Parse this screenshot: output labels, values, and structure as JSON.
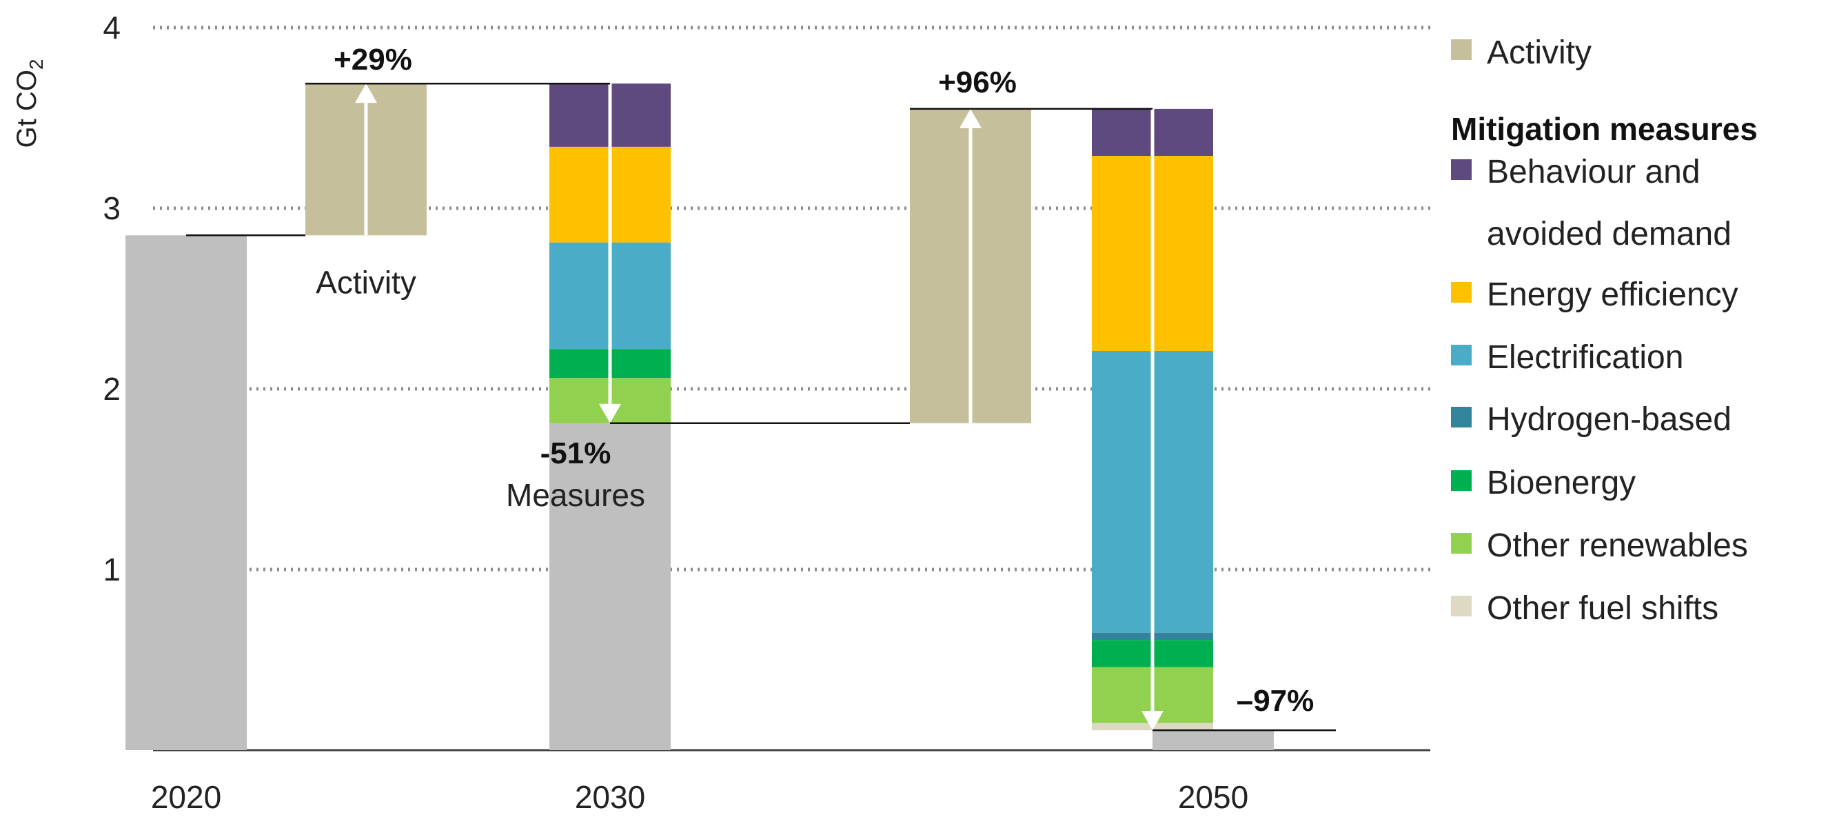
{
  "chart_data": {
    "type": "waterfall",
    "ylabel": "Gt CO",
    "ylabel_sub": "2",
    "yticks": [
      "1",
      "2",
      "3",
      "4"
    ],
    "ylim": [
      0,
      4
    ],
    "grid": true,
    "legend_position": "right",
    "categories": [
      "2020",
      "2030",
      "2050"
    ],
    "totals": [
      {
        "label": "2020",
        "value": 2.85
      },
      {
        "label": "2030",
        "value": 1.81
      },
      {
        "label": "2050",
        "value": 0.11
      }
    ],
    "activity_steps": [
      {
        "from": 2.85,
        "to": 3.69,
        "pct_label": "+29%",
        "text_label": "Activity"
      },
      {
        "from": 1.81,
        "to": 3.55,
        "pct_label": "+96%",
        "text_label": ""
      }
    ],
    "measure_steps": [
      {
        "from": 3.69,
        "to": 1.81,
        "pct_label": "-51%",
        "text_label": "Measures",
        "segments": {
          "behaviour": 0.35,
          "efficiency": 0.53,
          "electrification": 0.59,
          "hydrogen": 0.0,
          "bioenergy": 0.16,
          "other_renewables": 0.25,
          "other_fuel_shifts": 0.0
        }
      },
      {
        "from": 3.55,
        "to": 0.11,
        "pct_label": "–97%",
        "text_label": "",
        "segments": {
          "behaviour": 0.26,
          "efficiency": 1.08,
          "electrification": 1.56,
          "hydrogen": 0.04,
          "bioenergy": 0.15,
          "other_renewables": 0.31,
          "other_fuel_shifts": 0.04
        }
      }
    ],
    "legend": {
      "activity": "Activity",
      "heading": "Mitigation measures",
      "items": [
        {
          "key": "behaviour",
          "lines": [
            "Behaviour and",
            "avoided demand"
          ]
        },
        {
          "key": "efficiency",
          "lines": [
            "Energy efficiency"
          ]
        },
        {
          "key": "electrification",
          "lines": [
            "Electrification"
          ]
        },
        {
          "key": "hydrogen",
          "lines": [
            "Hydrogen-based"
          ]
        },
        {
          "key": "bioenergy",
          "lines": [
            "Bioenergy"
          ]
        },
        {
          "key": "other_renewables",
          "lines": [
            "Other renewables"
          ]
        },
        {
          "key": "other_fuel_shifts",
          "lines": [
            "Other fuel shifts"
          ]
        }
      ]
    },
    "colors": {
      "total": "#bfbfbf",
      "activity": "#c6bf9c",
      "behaviour": "#5e4a7e",
      "efficiency": "#ffc000",
      "electrification": "#4aacc6",
      "hydrogen": "#31849b",
      "bioenergy": "#00b050",
      "other_renewables": "#92d050",
      "other_fuel_shifts": "#ddd9c3",
      "grid": "#8c8c8c",
      "axis": "#444444"
    }
  }
}
